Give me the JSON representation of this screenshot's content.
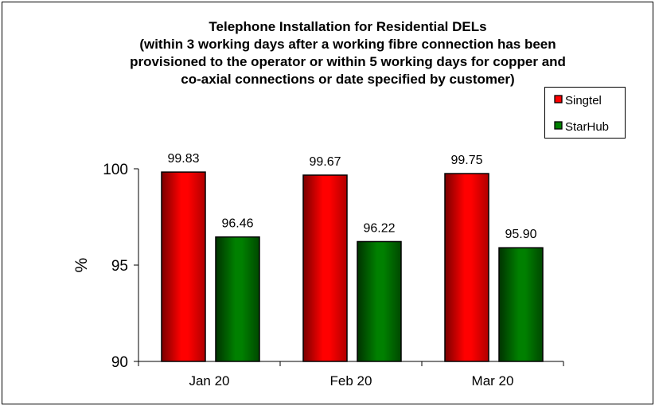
{
  "chart_data": {
    "type": "bar",
    "title": [
      "Telephone Installation for Residential DELs",
      "(within 3 working days after a working fibre connection has been",
      "provisioned to the operator or within 5 working days for copper and",
      "co-axial connections or date specified by customer)"
    ],
    "xlabel": "",
    "ylabel": "%",
    "ylim": [
      90,
      100
    ],
    "yticks": [
      "90",
      "95",
      "100"
    ],
    "categories": [
      "Jan 20",
      "Feb 20",
      "Mar 20"
    ],
    "series": [
      {
        "name": "Singtel",
        "color": "#ff0000",
        "values": [
          99.83,
          99.67,
          99.75
        ],
        "labels": [
          "99.83",
          "99.67",
          "99.75"
        ]
      },
      {
        "name": "StarHub",
        "color": "#008000",
        "values": [
          96.46,
          96.22,
          95.9
        ],
        "labels": [
          "96.46",
          "96.22",
          "95.90"
        ]
      }
    ],
    "grid": false,
    "legend": "top-right"
  }
}
